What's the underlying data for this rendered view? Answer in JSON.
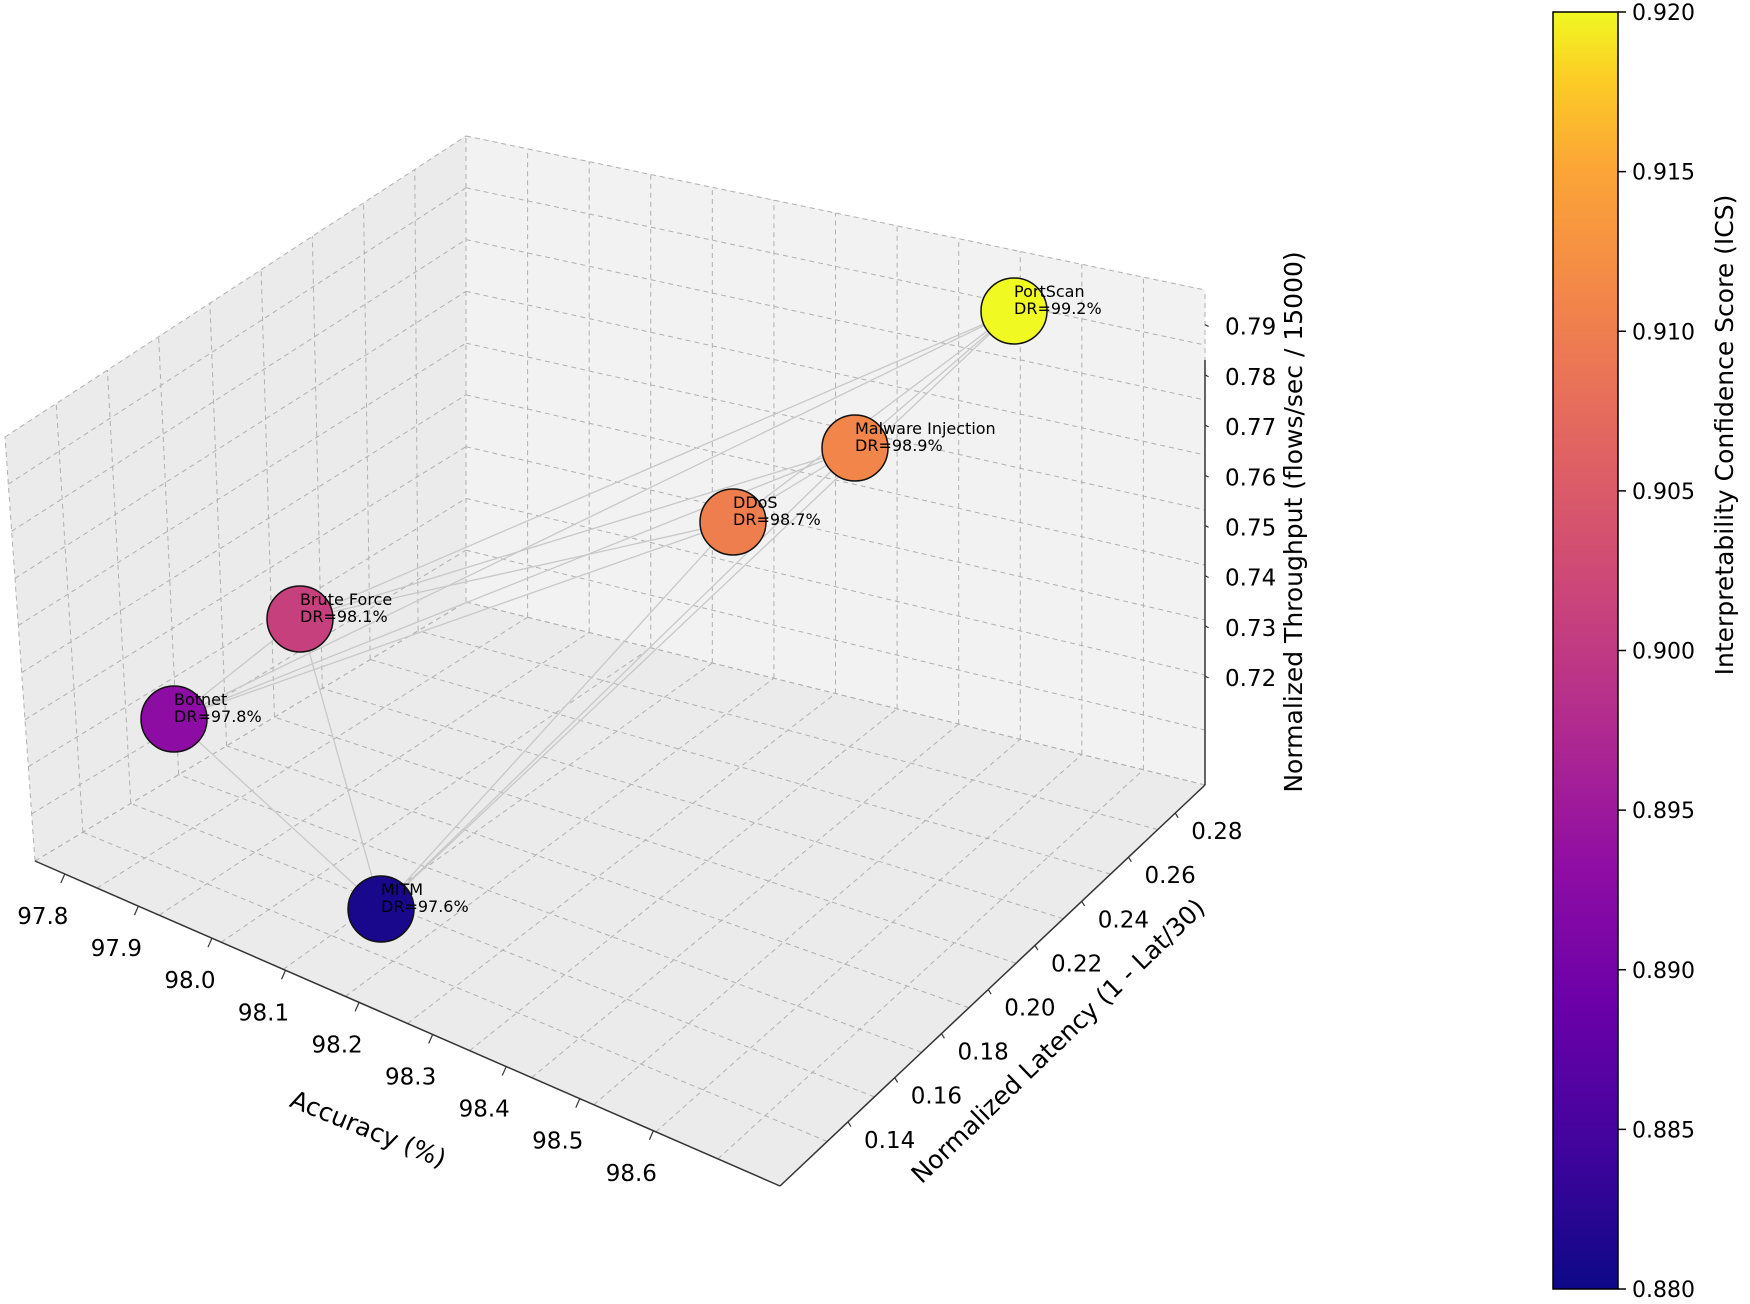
{
  "chart_data": {
    "type": "scatter3d",
    "x": {
      "label": "Accuracy (%)",
      "ticks": [
        "97.8",
        "97.9",
        "98.0",
        "98.1",
        "98.2",
        "98.3",
        "98.4",
        "98.5",
        "98.6"
      ]
    },
    "y": {
      "label": "Normalized Latency (1 - Lat/30)",
      "ticks": [
        "0.14",
        "0.16",
        "0.18",
        "0.20",
        "0.22",
        "0.24",
        "0.26",
        "0.28"
      ]
    },
    "z": {
      "label": "Normalized Throughput (flows/sec / 15000)",
      "ticks": [
        "0.72",
        "0.73",
        "0.74",
        "0.75",
        "0.76",
        "0.77",
        "0.78",
        "0.79"
      ]
    },
    "colorbar": {
      "label": "Interpretability Confidence Score (ICS)",
      "colormap": "plasma",
      "range": [
        0.88,
        0.92
      ],
      "ticks": [
        "0.920",
        "0.915",
        "0.910",
        "0.905",
        "0.900",
        "0.895",
        "0.890",
        "0.885",
        "0.880"
      ]
    },
    "points": [
      {
        "name": "Botnet",
        "label": "DR=97.8%",
        "ics": 0.893
      },
      {
        "name": "Brute Force",
        "label": "DR=98.1%",
        "ics": 0.901
      },
      {
        "name": "MITM",
        "label": "DR=97.6%",
        "ics": 0.881
      },
      {
        "name": "DDoS",
        "label": "DR=98.7%",
        "ics": 0.91
      },
      {
        "name": "Malware Injection",
        "label": "DR=98.9%",
        "ics": 0.911
      },
      {
        "name": "PortScan",
        "label": "DR=99.2%",
        "ics": 0.92
      }
    ],
    "colors": {
      "pane": "#f2f2f2",
      "pane_side": "#ebebeb",
      "grid": "#b0b0b0",
      "connector": "#c8c8c8"
    }
  }
}
